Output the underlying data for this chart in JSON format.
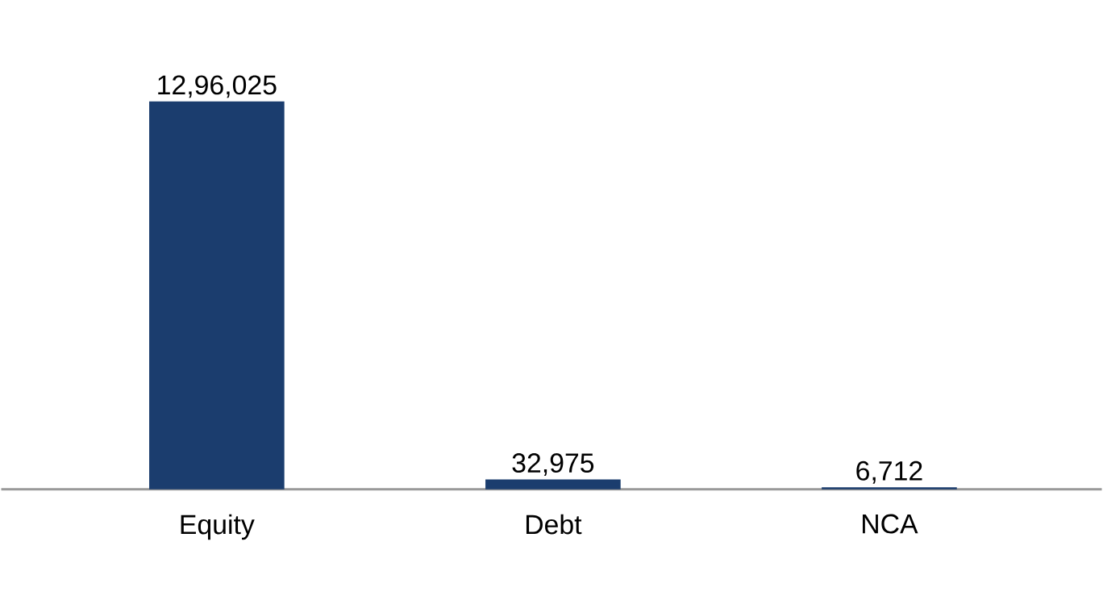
{
  "chart_data": {
    "type": "bar",
    "categories": [
      "Equity",
      "Debt",
      "NCA"
    ],
    "values": [
      1296025,
      32975,
      6712
    ],
    "value_labels": [
      "12,96,025",
      "32,975",
      "6,712"
    ],
    "color": "#1b3d6e",
    "tick_labels": "x"
  }
}
